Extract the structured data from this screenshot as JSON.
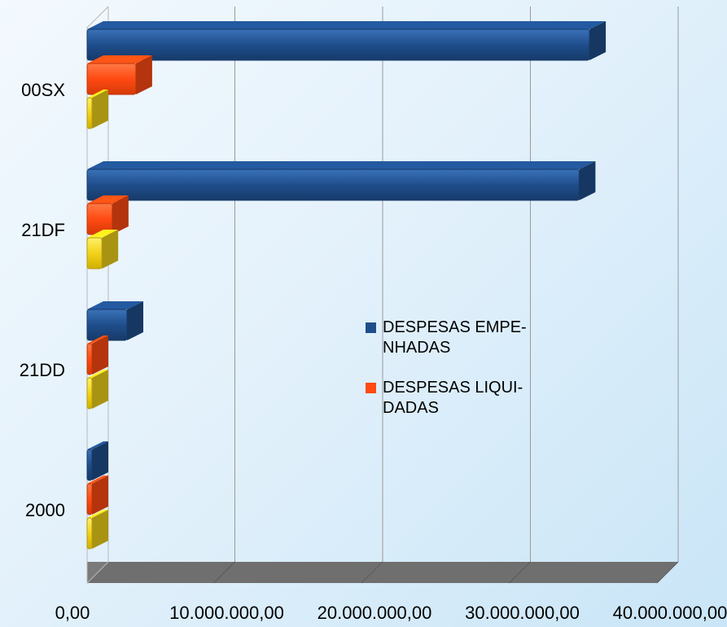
{
  "chart_data": {
    "type": "bar",
    "orientation": "horizontal",
    "style": "3d",
    "categories": [
      "00SX",
      "21DF",
      "21DD",
      "2000"
    ],
    "series": [
      {
        "name": "DESPESAS EMPENHADAS",
        "color": "#1f4e8c",
        "values": [
          34000000,
          33300000,
          2700000,
          300000
        ]
      },
      {
        "name": "DESPESAS LIQUIDADAS",
        "color": "#ff4a12",
        "values": [
          3300000,
          1700000,
          300000,
          300000
        ]
      },
      {
        "name": "",
        "color": "#f2d21a",
        "values": [
          300000,
          1000000,
          300000,
          300000
        ]
      }
    ],
    "x_ticks": [
      "0,00",
      "10.000.000,00",
      "20.000.000,00",
      "30.000.000,00",
      "40.000.000,00"
    ],
    "xlim": [
      0,
      40000000
    ],
    "grid": true,
    "legend": {
      "position": "center-right",
      "entries": [
        {
          "lines": [
            "DESPESAS EMPE-",
            "NHADAS"
          ],
          "color": "#1f4e8c"
        },
        {
          "lines": [
            "DESPESAS LIQUI-",
            "DADAS"
          ],
          "color": "#ff4a12"
        }
      ]
    }
  }
}
